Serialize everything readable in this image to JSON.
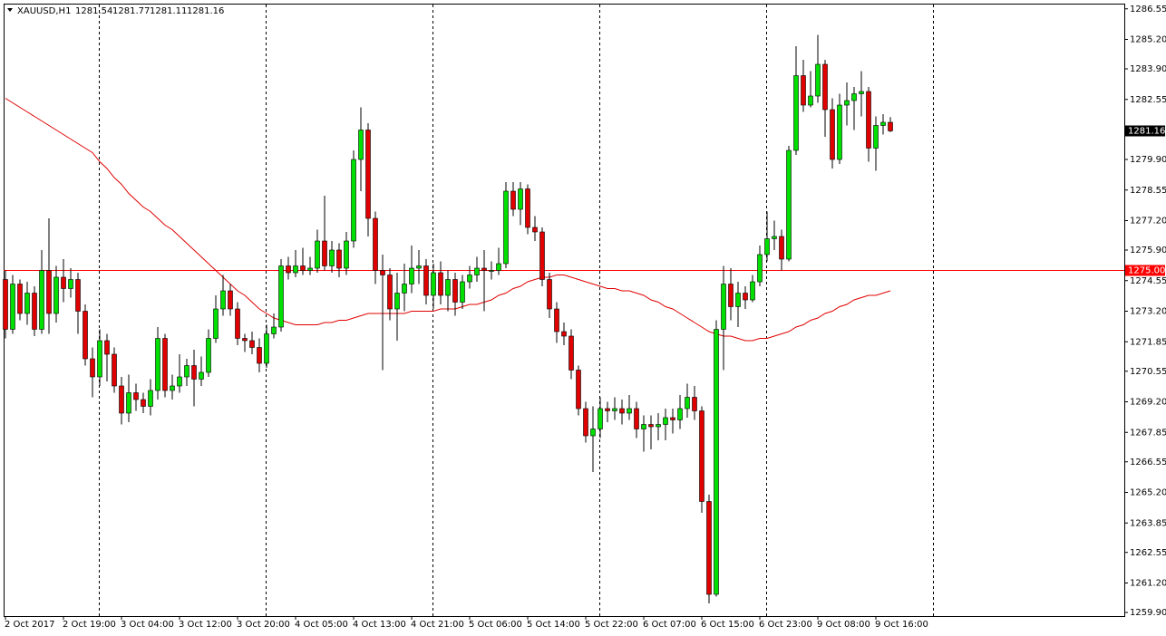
{
  "chart_data": {
    "type": "candlestick",
    "title": "XAUUSD,H1",
    "categories": [
      "2 Oct 2017",
      null,
      null,
      null,
      null,
      null,
      null,
      null,
      "2 Oct 19:00",
      null,
      null,
      null,
      null,
      null,
      null,
      null,
      "3 Oct 04:00",
      null,
      null,
      null,
      null,
      null,
      null,
      null,
      "3 Oct 12:00",
      null,
      null,
      null,
      null,
      null,
      null,
      null,
      "3 Oct 20:00",
      null,
      null,
      null,
      null,
      null,
      null,
      null,
      "4 Oct 05:00",
      null,
      null,
      null,
      null,
      null,
      null,
      null,
      "4 Oct 13:00",
      null,
      null,
      null,
      null,
      null,
      null,
      null,
      "4 Oct 21:00",
      null,
      null,
      null,
      null,
      null,
      null,
      null,
      "5 Oct 06:00",
      null,
      null,
      null,
      null,
      null,
      null,
      null,
      "5 Oct 14:00",
      null,
      null,
      null,
      null,
      null,
      null,
      null,
      "5 Oct 22:00",
      null,
      null,
      null,
      null,
      null,
      null,
      null,
      "6 Oct 07:00",
      null,
      null,
      null,
      null,
      null,
      null,
      null,
      "6 Oct 15:00",
      null,
      null,
      null,
      null,
      null,
      null,
      null,
      "6 Oct 23:00",
      null,
      null,
      null,
      null,
      null,
      null,
      null,
      "9 Oct 08:00",
      null,
      null,
      null,
      null,
      null,
      null,
      null,
      "9 Oct 16:00",
      null,
      null
    ],
    "open": [
      1274.6,
      1272.4,
      1274.4,
      1273.1,
      1274.0,
      1272.4,
      1275.0,
      1273.1,
      1274.7,
      1274.2,
      1274.6,
      1273.2,
      1271.1,
      1270.3,
      1271.9,
      1271.3,
      1269.9,
      1268.7,
      1269.6,
      1269.3,
      1269.0,
      1269.7,
      1272.0,
      1269.7,
      1269.9,
      1270.3,
      1270.8,
      1270.2,
      1270.5,
      1272.0,
      1273.3,
      1274.1,
      1273.3,
      1272.0,
      1271.9,
      1271.6,
      1270.9,
      1272.2,
      1272.5,
      1275.2,
      1274.9,
      1275.2,
      1275.0,
      1275.1,
      1276.3,
      1275.2,
      1275.9,
      1275.1,
      1276.3,
      1279.9,
      1281.2,
      1277.3,
      1275.0,
      1274.8,
      1273.3,
      1274.0,
      1274.4,
      1275.1,
      1275.2,
      1273.9,
      1274.9,
      1273.9,
      1274.6,
      1273.6,
      1274.5,
      1274.8,
      1275.1,
      1275.0,
      1275.0,
      1275.3,
      1278.5,
      1277.7,
      1278.6,
      1276.9,
      1276.7,
      1274.6,
      1273.3,
      1272.3,
      1272.1,
      1270.6,
      1268.9,
      1267.7,
      1268.0,
      1268.9,
      1268.8,
      1268.9,
      1268.7,
      1268.9,
      1268.0,
      1268.2,
      1268.1,
      1268.2,
      1268.5,
      1268.4,
      1268.9,
      1269.4,
      1268.8,
      1264.8,
      1260.7,
      1272.4,
      1274.4,
      1273.4,
      1274.0,
      1273.7,
      1274.5,
      1275.7,
      1276.4,
      1276.5,
      1275.5,
      1280.3,
      1283.6,
      1282.3,
      1282.7,
      1284.1,
      1282.1,
      1279.9,
      1282.3,
      1282.5,
      1282.8,
      1282.9,
      1280.4,
      1281.4,
      1281.54
    ],
    "high": [
      1275.0,
      1274.8,
      1274.6,
      1274.5,
      1274.3,
      1275.9,
      1277.3,
      1275.2,
      1275.5,
      1275.1,
      1274.9,
      1273.5,
      1271.6,
      1272.4,
      1272.2,
      1271.6,
      1270.3,
      1270.4,
      1270.0,
      1269.6,
      1270.2,
      1272.5,
      1272.2,
      1270.4,
      1271.3,
      1271.1,
      1271.5,
      1271.2,
      1272.4,
      1273.9,
      1274.8,
      1274.4,
      1273.6,
      1272.2,
      1272.3,
      1272.0,
      1272.6,
      1273.1,
      1275.5,
      1275.6,
      1275.9,
      1276.0,
      1275.6,
      1276.8,
      1278.3,
      1276.3,
      1276.2,
      1276.7,
      1280.3,
      1282.2,
      1281.5,
      1277.6,
      1275.7,
      1275.1,
      1274.9,
      1275.3,
      1276.1,
      1275.9,
      1275.5,
      1275.3,
      1275.4,
      1275.0,
      1274.9,
      1274.8,
      1275.2,
      1275.6,
      1275.9,
      1275.4,
      1276.0,
      1278.9,
      1278.9,
      1278.9,
      1278.8,
      1277.4,
      1276.9,
      1274.9,
      1273.6,
      1272.7,
      1272.4,
      1270.8,
      1269.2,
      1269.0,
      1269.4,
      1269.2,
      1269.4,
      1269.3,
      1269.5,
      1269.2,
      1268.6,
      1268.6,
      1268.7,
      1268.9,
      1268.9,
      1269.5,
      1270.0,
      1269.9,
      1269.0,
      1265.1,
      1272.8,
      1275.2,
      1275.1,
      1274.5,
      1274.3,
      1274.8,
      1276.1,
      1277.6,
      1277.2,
      1276.8,
      1280.5,
      1284.9,
      1284.3,
      1283.8,
      1285.4,
      1284.3,
      1282.6,
      1282.8,
      1283.3,
      1283.1,
      1283.8,
      1283.1,
      1281.8,
      1281.9,
      1281.77
    ],
    "low": [
      1272.0,
      1272.2,
      1272.8,
      1272.6,
      1272.1,
      1272.2,
      1272.2,
      1272.7,
      1273.6,
      1273.8,
      1272.2,
      1270.8,
      1269.4,
      1269.9,
      1270.1,
      1269.6,
      1268.2,
      1268.3,
      1268.8,
      1268.7,
      1268.6,
      1269.3,
      1269.4,
      1269.3,
      1269.6,
      1269.9,
      1269.0,
      1269.9,
      1270.3,
      1271.8,
      1273.0,
      1273.0,
      1271.7,
      1271.4,
      1271.3,
      1270.5,
      1270.7,
      1272.0,
      1272.3,
      1274.6,
      1274.7,
      1274.8,
      1274.8,
      1274.9,
      1275.0,
      1274.9,
      1274.7,
      1274.8,
      1276.0,
      1278.5,
      1276.5,
      1274.4,
      1270.6,
      1272.8,
      1271.9,
      1273.2,
      1274.0,
      1274.4,
      1273.5,
      1273.3,
      1273.5,
      1273.2,
      1273.0,
      1273.3,
      1274.2,
      1274.5,
      1273.2,
      1274.6,
      1274.8,
      1275.1,
      1277.4,
      1277.0,
      1276.6,
      1276.3,
      1274.3,
      1272.9,
      1271.8,
      1271.7,
      1270.2,
      1268.6,
      1267.4,
      1266.1,
      1267.6,
      1268.3,
      1268.4,
      1268.2,
      1268.4,
      1267.6,
      1267.0,
      1267.1,
      1267.5,
      1267.5,
      1267.8,
      1268.0,
      1268.5,
      1268.4,
      1264.3,
      1260.3,
      1260.6,
      1270.6,
      1272.8,
      1272.5,
      1273.3,
      1273.6,
      1274.3,
      1275.4,
      1275.9,
      1275.0,
      1275.4,
      1280.1,
      1282.0,
      1282.2,
      1282.4,
      1280.9,
      1279.5,
      1279.7,
      1281.4,
      1281.2,
      1281.8,
      1279.8,
      1279.4,
      1281.0,
      1281.11
    ],
    "close": [
      1272.4,
      1274.4,
      1273.1,
      1274.0,
      1272.4,
      1275.0,
      1273.1,
      1274.7,
      1274.2,
      1274.6,
      1273.2,
      1271.1,
      1270.3,
      1271.9,
      1271.3,
      1269.9,
      1268.7,
      1269.6,
      1269.3,
      1269.0,
      1269.7,
      1272.0,
      1269.7,
      1269.9,
      1270.3,
      1270.8,
      1270.2,
      1270.5,
      1272.0,
      1273.3,
      1274.1,
      1273.3,
      1272.0,
      1271.9,
      1271.6,
      1270.9,
      1272.2,
      1272.5,
      1275.2,
      1274.9,
      1275.2,
      1275.0,
      1275.1,
      1276.3,
      1275.2,
      1275.9,
      1275.1,
      1276.3,
      1279.9,
      1281.2,
      1277.3,
      1275.0,
      1274.8,
      1273.3,
      1274.0,
      1274.4,
      1275.1,
      1275.2,
      1273.9,
      1274.9,
      1273.9,
      1274.6,
      1273.6,
      1274.5,
      1274.8,
      1275.1,
      1275.0,
      1275.0,
      1275.3,
      1278.5,
      1277.7,
      1278.6,
      1276.9,
      1276.7,
      1274.6,
      1273.3,
      1272.3,
      1272.1,
      1270.6,
      1268.9,
      1267.7,
      1268.0,
      1268.9,
      1268.8,
      1268.9,
      1268.7,
      1268.9,
      1268.0,
      1268.2,
      1268.1,
      1268.2,
      1268.5,
      1268.4,
      1268.9,
      1269.4,
      1268.8,
      1264.8,
      1260.7,
      1272.4,
      1274.4,
      1273.4,
      1274.0,
      1273.7,
      1274.5,
      1275.7,
      1276.4,
      1276.5,
      1275.5,
      1280.3,
      1283.6,
      1282.3,
      1282.7,
      1284.1,
      1282.1,
      1279.9,
      1282.3,
      1282.5,
      1282.8,
      1282.9,
      1280.4,
      1281.4,
      1281.54,
      1281.16
    ],
    "up_color": "#00e000",
    "down_color": "#e00000",
    "ma": {
      "color": "#e00000",
      "values": [
        1282.6,
        1282.4,
        1282.2,
        1282.0,
        1281.8,
        1281.6,
        1281.4,
        1281.2,
        1281.0,
        1280.8,
        1280.6,
        1280.4,
        1280.2,
        1279.8,
        1279.5,
        1279.1,
        1278.8,
        1278.4,
        1278.1,
        1277.8,
        1277.6,
        1277.3,
        1277.0,
        1276.8,
        1276.5,
        1276.2,
        1275.9,
        1275.6,
        1275.3,
        1275.0,
        1274.7,
        1274.4,
        1274.1,
        1273.9,
        1273.6,
        1273.3,
        1273.1,
        1272.9,
        1272.8,
        1272.7,
        1272.6,
        1272.6,
        1272.6,
        1272.6,
        1272.7,
        1272.7,
        1272.8,
        1272.8,
        1272.9,
        1273.0,
        1273.1,
        1273.1,
        1273.1,
        1273.1,
        1273.1,
        1273.1,
        1273.2,
        1273.2,
        1273.2,
        1273.2,
        1273.3,
        1273.3,
        1273.3,
        1273.4,
        1273.5,
        1273.5,
        1273.6,
        1273.7,
        1273.9,
        1274.0,
        1274.2,
        1274.3,
        1274.5,
        1274.6,
        1274.7,
        1274.7,
        1274.8,
        1274.8,
        1274.7,
        1274.6,
        1274.5,
        1274.4,
        1274.3,
        1274.2,
        1274.2,
        1274.1,
        1274.1,
        1274.0,
        1273.9,
        1273.7,
        1273.6,
        1273.4,
        1273.3,
        1273.1,
        1272.9,
        1272.7,
        1272.5,
        1272.3,
        1272.2,
        1272.1,
        1272.1,
        1272.0,
        1271.9,
        1271.9,
        1272.0,
        1272.0,
        1272.1,
        1272.2,
        1272.3,
        1272.5,
        1272.6,
        1272.8,
        1272.9,
        1273.1,
        1273.2,
        1273.4,
        1273.5,
        1273.7,
        1273.8,
        1273.9,
        1273.9,
        1274.0,
        1274.1
      ]
    },
    "hline": {
      "value": 1275,
      "label": "1275.00",
      "color": "#ff0000"
    },
    "last_price": {
      "value": 1281.16,
      "label": "1281.16"
    },
    "ylim": [
      1259.74,
      1286.78
    ],
    "yticks": [
      1286.55,
      {
        "value": 1285.2,
        "label": "1285.20"
      },
      {
        "value": 1283.9,
        "label": "1283.90"
      },
      1282.55,
      {
        "value": 1279.9,
        "label": "1279.90"
      },
      1278.55,
      {
        "value": 1277.2,
        "label": "1277.20"
      },
      {
        "value": 1275.9,
        "label": "1275.90"
      },
      1274.55,
      {
        "value": 1273.2,
        "label": "1273.20"
      },
      1271.85,
      1270.55,
      {
        "value": 1269.2,
        "label": "1269.20"
      },
      1267.85,
      1266.55,
      {
        "value": 1265.2,
        "label": "1265.20"
      },
      1263.85,
      1262.55,
      {
        "value": 1261.2,
        "label": "1261.20"
      },
      {
        "value": 1259.9,
        "label": "1259.90"
      }
    ]
  }
}
